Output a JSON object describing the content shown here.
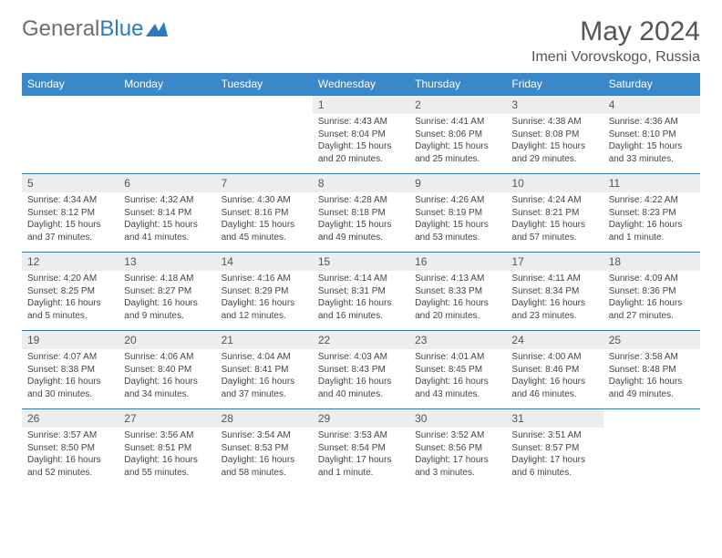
{
  "brand": {
    "part1": "General",
    "part2": "Blue"
  },
  "title": "May 2024",
  "location": "Imeni Vorovskogo, Russia",
  "colors": {
    "header_bg": "#3b88c9",
    "header_text": "#ffffff",
    "daynum_bg": "#ededed",
    "border": "#3b78a8",
    "text": "#444444",
    "brand_gray": "#6e6e6e",
    "brand_blue": "#2b7bbf"
  },
  "weekdays": [
    "Sunday",
    "Monday",
    "Tuesday",
    "Wednesday",
    "Thursday",
    "Friday",
    "Saturday"
  ],
  "weeks": [
    [
      null,
      null,
      null,
      {
        "n": "1",
        "sr": "4:43 AM",
        "ss": "8:04 PM",
        "dl": "15 hours and 20 minutes."
      },
      {
        "n": "2",
        "sr": "4:41 AM",
        "ss": "8:06 PM",
        "dl": "15 hours and 25 minutes."
      },
      {
        "n": "3",
        "sr": "4:38 AM",
        "ss": "8:08 PM",
        "dl": "15 hours and 29 minutes."
      },
      {
        "n": "4",
        "sr": "4:36 AM",
        "ss": "8:10 PM",
        "dl": "15 hours and 33 minutes."
      }
    ],
    [
      {
        "n": "5",
        "sr": "4:34 AM",
        "ss": "8:12 PM",
        "dl": "15 hours and 37 minutes."
      },
      {
        "n": "6",
        "sr": "4:32 AM",
        "ss": "8:14 PM",
        "dl": "15 hours and 41 minutes."
      },
      {
        "n": "7",
        "sr": "4:30 AM",
        "ss": "8:16 PM",
        "dl": "15 hours and 45 minutes."
      },
      {
        "n": "8",
        "sr": "4:28 AM",
        "ss": "8:18 PM",
        "dl": "15 hours and 49 minutes."
      },
      {
        "n": "9",
        "sr": "4:26 AM",
        "ss": "8:19 PM",
        "dl": "15 hours and 53 minutes."
      },
      {
        "n": "10",
        "sr": "4:24 AM",
        "ss": "8:21 PM",
        "dl": "15 hours and 57 minutes."
      },
      {
        "n": "11",
        "sr": "4:22 AM",
        "ss": "8:23 PM",
        "dl": "16 hours and 1 minute."
      }
    ],
    [
      {
        "n": "12",
        "sr": "4:20 AM",
        "ss": "8:25 PM",
        "dl": "16 hours and 5 minutes."
      },
      {
        "n": "13",
        "sr": "4:18 AM",
        "ss": "8:27 PM",
        "dl": "16 hours and 9 minutes."
      },
      {
        "n": "14",
        "sr": "4:16 AM",
        "ss": "8:29 PM",
        "dl": "16 hours and 12 minutes."
      },
      {
        "n": "15",
        "sr": "4:14 AM",
        "ss": "8:31 PM",
        "dl": "16 hours and 16 minutes."
      },
      {
        "n": "16",
        "sr": "4:13 AM",
        "ss": "8:33 PM",
        "dl": "16 hours and 20 minutes."
      },
      {
        "n": "17",
        "sr": "4:11 AM",
        "ss": "8:34 PM",
        "dl": "16 hours and 23 minutes."
      },
      {
        "n": "18",
        "sr": "4:09 AM",
        "ss": "8:36 PM",
        "dl": "16 hours and 27 minutes."
      }
    ],
    [
      {
        "n": "19",
        "sr": "4:07 AM",
        "ss": "8:38 PM",
        "dl": "16 hours and 30 minutes."
      },
      {
        "n": "20",
        "sr": "4:06 AM",
        "ss": "8:40 PM",
        "dl": "16 hours and 34 minutes."
      },
      {
        "n": "21",
        "sr": "4:04 AM",
        "ss": "8:41 PM",
        "dl": "16 hours and 37 minutes."
      },
      {
        "n": "22",
        "sr": "4:03 AM",
        "ss": "8:43 PM",
        "dl": "16 hours and 40 minutes."
      },
      {
        "n": "23",
        "sr": "4:01 AM",
        "ss": "8:45 PM",
        "dl": "16 hours and 43 minutes."
      },
      {
        "n": "24",
        "sr": "4:00 AM",
        "ss": "8:46 PM",
        "dl": "16 hours and 46 minutes."
      },
      {
        "n": "25",
        "sr": "3:58 AM",
        "ss": "8:48 PM",
        "dl": "16 hours and 49 minutes."
      }
    ],
    [
      {
        "n": "26",
        "sr": "3:57 AM",
        "ss": "8:50 PM",
        "dl": "16 hours and 52 minutes."
      },
      {
        "n": "27",
        "sr": "3:56 AM",
        "ss": "8:51 PM",
        "dl": "16 hours and 55 minutes."
      },
      {
        "n": "28",
        "sr": "3:54 AM",
        "ss": "8:53 PM",
        "dl": "16 hours and 58 minutes."
      },
      {
        "n": "29",
        "sr": "3:53 AM",
        "ss": "8:54 PM",
        "dl": "17 hours and 1 minute."
      },
      {
        "n": "30",
        "sr": "3:52 AM",
        "ss": "8:56 PM",
        "dl": "17 hours and 3 minutes."
      },
      {
        "n": "31",
        "sr": "3:51 AM",
        "ss": "8:57 PM",
        "dl": "17 hours and 6 minutes."
      },
      null
    ]
  ],
  "labels": {
    "sunrise": "Sunrise:",
    "sunset": "Sunset:",
    "daylight": "Daylight:"
  }
}
